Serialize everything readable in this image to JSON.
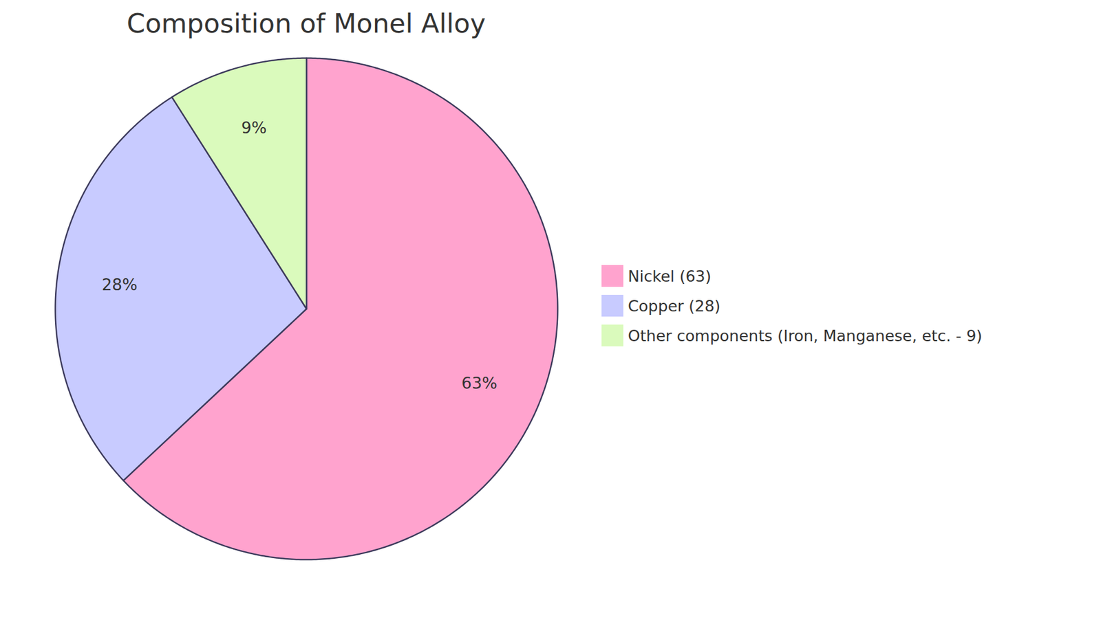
{
  "chart_data": {
    "type": "pie",
    "title": "Composition of Monel Alloy",
    "categories": [
      "Nickel (63)",
      "Copper (28)",
      "Other components (Iron, Manganese, etc. - 9)"
    ],
    "values": [
      63,
      28,
      9
    ],
    "value_labels": [
      "63%",
      "28%",
      "9%"
    ],
    "colors": [
      "#ffa3ce",
      "#c8cbff",
      "#dafabc"
    ],
    "data_labels": true,
    "legend": "right"
  }
}
